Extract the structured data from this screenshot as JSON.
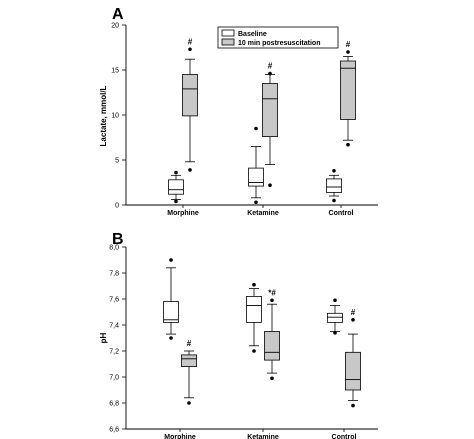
{
  "chart_data": [
    {
      "panel_label": "A",
      "type": "box",
      "ylabel": "Lactate, mmol/L",
      "ylim": [
        0,
        20
      ],
      "yticks": [
        "0",
        "5",
        "10",
        "15",
        "20"
      ],
      "categories": [
        "Morphine",
        "Ketamine",
        "Control"
      ],
      "legend": {
        "placement": "top-center",
        "entries": [
          {
            "label": "Baseline",
            "color": "#ffffff"
          },
          {
            "label": "10 min postresuscitation",
            "color": "#c8c8c8"
          }
        ]
      },
      "series": [
        {
          "name": "Baseline",
          "color": "#ffffff",
          "boxes": [
            {
              "whisker_low": 0.6,
              "q1": 1.2,
              "median": 1.7,
              "q3": 2.8,
              "whisker_high": 3.3,
              "outliers": [
                0.4,
                3.6
              ]
            },
            {
              "whisker_low": 0.8,
              "q1": 2.1,
              "median": 2.5,
              "q3": 4.1,
              "whisker_high": 6.5,
              "outliers": [
                0.3,
                8.5
              ]
            },
            {
              "whisker_low": 1.0,
              "q1": 1.4,
              "median": 2.0,
              "q3": 2.9,
              "whisker_high": 3.3,
              "outliers": [
                0.5,
                3.8
              ]
            }
          ]
        },
        {
          "name": "10 min postresuscitation",
          "color": "#c8c8c8",
          "boxes": [
            {
              "whisker_low": 4.8,
              "q1": 9.9,
              "median": 12.9,
              "q3": 14.5,
              "whisker_high": 16.2,
              "outliers": [
                3.9,
                17.3
              ],
              "annotation": "#"
            },
            {
              "whisker_low": 4.5,
              "q1": 7.6,
              "median": 11.8,
              "q3": 13.5,
              "whisker_high": 14.5,
              "outliers": [
                2.2,
                14.6
              ],
              "annotation": "#"
            },
            {
              "whisker_low": 7.2,
              "q1": 9.5,
              "median": 15.2,
              "q3": 16.0,
              "whisker_high": 16.5,
              "outliers": [
                6.7,
                17.0
              ],
              "annotation": "#"
            }
          ]
        }
      ]
    },
    {
      "panel_label": "B",
      "type": "box",
      "ylabel": "pH",
      "ylim": [
        6.6,
        8.0
      ],
      "yticks": [
        "6,6",
        "6,8",
        "7,0",
        "7,2",
        "7,4",
        "7,6",
        "7,8",
        "8,0"
      ],
      "categories": [
        "Morphine",
        "Ketamine",
        "Control"
      ],
      "series": [
        {
          "name": "Baseline",
          "color": "#ffffff",
          "boxes": [
            {
              "whisker_low": 7.33,
              "q1": 7.42,
              "median": 7.44,
              "q3": 7.58,
              "whisker_high": 7.84,
              "outliers": [
                7.3,
                7.9
              ]
            },
            {
              "whisker_low": 7.24,
              "q1": 7.42,
              "median": 7.55,
              "q3": 7.62,
              "whisker_high": 7.68,
              "outliers": [
                7.2,
                7.71
              ]
            },
            {
              "whisker_low": 7.35,
              "q1": 7.42,
              "median": 7.46,
              "q3": 7.49,
              "whisker_high": 7.55,
              "outliers": [
                7.34,
                7.59
              ]
            }
          ]
        },
        {
          "name": "10 min postresuscitation",
          "color": "#c8c8c8",
          "boxes": [
            {
              "whisker_low": 6.84,
              "q1": 7.08,
              "median": 7.14,
              "q3": 7.17,
              "whisker_high": 7.2,
              "outliers": [
                6.8
              ],
              "annotation": "#"
            },
            {
              "whisker_low": 7.03,
              "q1": 7.13,
              "median": 7.19,
              "q3": 7.35,
              "whisker_high": 7.56,
              "outliers": [
                6.99,
                7.59
              ],
              "annotation": "*#"
            },
            {
              "whisker_low": 6.82,
              "q1": 6.9,
              "median": 6.98,
              "q3": 7.19,
              "whisker_high": 7.33,
              "outliers": [
                6.78,
                7.44
              ],
              "annotation": "#"
            }
          ]
        }
      ]
    }
  ]
}
